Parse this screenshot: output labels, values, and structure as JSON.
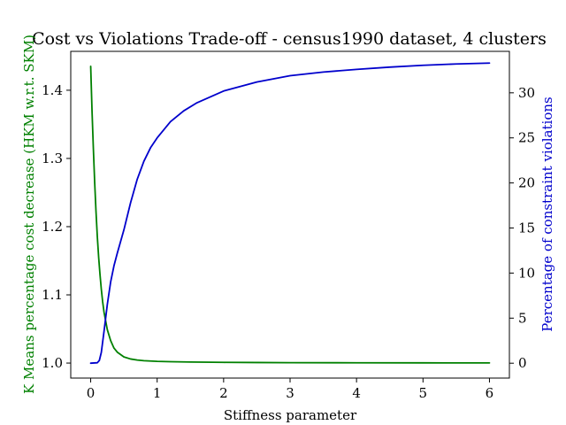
{
  "chart_data": {
    "type": "line",
    "title": "Cost vs Violations Trade-off - census1990 dataset, 4 clusters",
    "xlabel": "Stiffness parameter",
    "ylabel_left": "K Means percentage cost decrease (HKM w.r.t. SKM)",
    "ylabel_right": "Percentage of constraint violations",
    "xlim": [
      -0.3,
      6.3
    ],
    "ylim_left": [
      0.978,
      1.457
    ],
    "ylim_right": [
      -1.65,
      34.6
    ],
    "x_ticks": [
      "0",
      "1",
      "2",
      "3",
      "4",
      "5",
      "6"
    ],
    "y_left_ticks": [
      "1.0",
      "1.1",
      "1.2",
      "1.3",
      "1.4"
    ],
    "y_right_ticks": [
      "0",
      "5",
      "10",
      "15",
      "20",
      "25",
      "30"
    ],
    "grid": false,
    "legend": "none",
    "series": [
      {
        "axis": "left",
        "color": "#008000",
        "x": [
          0,
          0.02,
          0.04,
          0.06,
          0.08,
          0.1,
          0.12,
          0.14,
          0.16,
          0.18,
          0.2,
          0.25,
          0.3,
          0.35,
          0.4,
          0.5,
          0.6,
          0.7,
          0.8,
          1.0,
          1.2,
          1.5,
          2.0,
          2.5,
          3.0,
          4.0,
          5.0,
          6.0
        ],
        "y": [
          1.435,
          1.37,
          1.315,
          1.265,
          1.222,
          1.185,
          1.155,
          1.13,
          1.108,
          1.09,
          1.075,
          1.049,
          1.033,
          1.022,
          1.016,
          1.009,
          1.006,
          1.0045,
          1.0035,
          1.0025,
          1.002,
          1.0015,
          1.001,
          1.0008,
          1.0006,
          1.0004,
          1.0003,
          1.0002
        ]
      },
      {
        "axis": "right",
        "color": "#0000cc",
        "x": [
          0,
          0.1,
          0.13,
          0.16,
          0.2,
          0.25,
          0.3,
          0.35,
          0.4,
          0.5,
          0.6,
          0.7,
          0.8,
          0.9,
          1.0,
          1.2,
          1.4,
          1.6,
          2.0,
          2.5,
          3.0,
          3.5,
          4.0,
          4.5,
          5.0,
          5.5,
          6.0
        ],
        "y": [
          0,
          0.05,
          0.3,
          1.2,
          3.5,
          6.5,
          9.0,
          10.8,
          12.2,
          14.8,
          17.8,
          20.4,
          22.4,
          23.9,
          25.0,
          26.8,
          28.0,
          28.9,
          30.2,
          31.2,
          31.9,
          32.3,
          32.6,
          32.85,
          33.05,
          33.2,
          33.3
        ]
      }
    ]
  }
}
